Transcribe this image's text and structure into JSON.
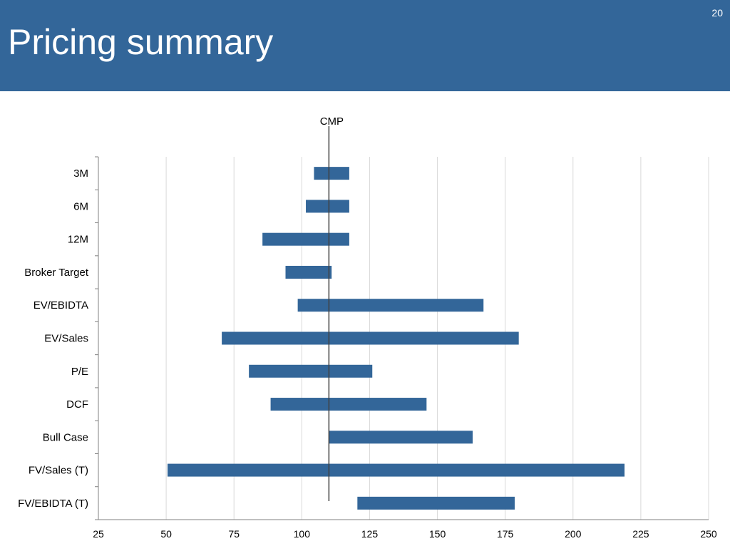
{
  "header": {
    "title": "Pricing summary",
    "page_number": "20"
  },
  "colors": {
    "header_bg": "#336699",
    "bar": "#336699",
    "grid": "#d9d9d9",
    "marker_line": "#404040"
  },
  "chart_data": {
    "type": "bar",
    "orientation": "horizontal",
    "subtype": "floating-range",
    "title": "",
    "xlabel": "",
    "ylabel": "",
    "categories": [
      "3M",
      "6M",
      "12M",
      "Broker Target",
      "EV/EBIDTA",
      "EV/Sales",
      "P/E",
      "DCF",
      "Bull Case",
      "FV/Sales (T)",
      "FV/EBIDTA (T)"
    ],
    "series": [
      {
        "low": [
          104.5,
          101.5,
          85.5,
          94,
          98.5,
          70.5,
          80.5,
          88.5,
          110,
          50.5,
          120.5
        ],
        "high": [
          117.5,
          117.5,
          117.5,
          111,
          167,
          180,
          126,
          146,
          163,
          219,
          178.5
        ]
      }
    ],
    "xlim": [
      25,
      250
    ],
    "xticks": [
      25,
      50,
      75,
      100,
      125,
      150,
      175,
      200,
      225,
      250
    ],
    "grid": "vertical",
    "reference_line": {
      "label": "CMP",
      "value": 110
    }
  }
}
